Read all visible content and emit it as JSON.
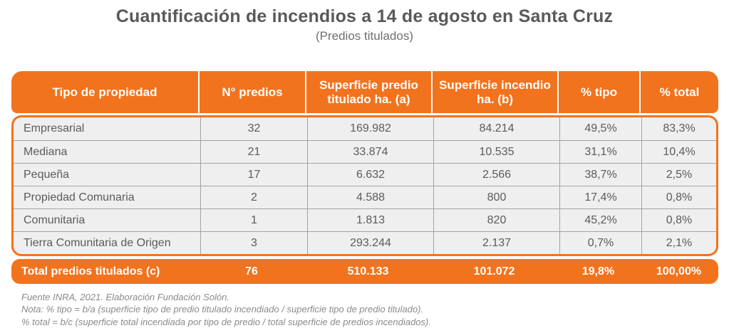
{
  "title": "Cuantificación de incendios a 14 de agosto en Santa Cruz",
  "subtitle": "(Predios titulados)",
  "colors": {
    "accent": "#F2731E",
    "row_bg": "#EFEFEF",
    "row_line": "#A3A3A3",
    "text_dark": "#58595B",
    "text_cell": "#5B5B5B",
    "text_note": "#8A8A8A"
  },
  "table": {
    "columns": [
      "Tipo de propiedad",
      "N° predios",
      "Superficie predio titulado ha. (a)",
      "Superficie incendio ha. (b)",
      "% tipo",
      "% total"
    ],
    "rows": [
      [
        "Empresarial",
        "32",
        "169.982",
        "84.214",
        "49,5%",
        "83,3%"
      ],
      [
        "Mediana",
        "21",
        "33.874",
        "10.535",
        "31,1%",
        "10,4%"
      ],
      [
        "Pequeña",
        "17",
        "6.632",
        "2.566",
        "38,7%",
        "2,5%"
      ],
      [
        "Propiedad Comunaria",
        "2",
        "4.588",
        "800",
        "17,4%",
        "0,8%"
      ],
      [
        "Comunitaria",
        "1",
        "1.813",
        "820",
        "45,2%",
        "0,8%"
      ],
      [
        "Tierra Comunitaria de Origen",
        "3",
        "293.244",
        "2.137",
        "0,7%",
        "2,1%"
      ]
    ],
    "total": [
      "Total predios titulados (c)",
      "76",
      "510.133",
      "101.072",
      "19,8%",
      "100,00%"
    ]
  },
  "notes": [
    "Fuente INRA, 2021. Elaboración Fundación Solón.",
    "Nota: % tipo = b/a (superficie tipo de predio titulado incendiado / superficie tipo de predio titulado).",
    "% total = b/c (superficie total incendiada por tipo de predio / total superficie de predios incendiados)."
  ],
  "chart_data": {
    "type": "table",
    "title": "Cuantificación de incendios a 14 de agosto en Santa Cruz",
    "subtitle": "(Predios titulados)",
    "columns": [
      "Tipo de propiedad",
      "N° predios",
      "Superficie predio titulado ha. (a)",
      "Superficie incendio ha. (b)",
      "% tipo",
      "% total"
    ],
    "rows": [
      {
        "tipo": "Empresarial",
        "n_predios": 32,
        "superficie_titulado_ha": 169982,
        "superficie_incendio_ha": 84214,
        "pct_tipo": 49.5,
        "pct_total": 83.3
      },
      {
        "tipo": "Mediana",
        "n_predios": 21,
        "superficie_titulado_ha": 33874,
        "superficie_incendio_ha": 10535,
        "pct_tipo": 31.1,
        "pct_total": 10.4
      },
      {
        "tipo": "Pequeña",
        "n_predios": 17,
        "superficie_titulado_ha": 6632,
        "superficie_incendio_ha": 2566,
        "pct_tipo": 38.7,
        "pct_total": 2.5
      },
      {
        "tipo": "Propiedad Comunaria",
        "n_predios": 2,
        "superficie_titulado_ha": 4588,
        "superficie_incendio_ha": 800,
        "pct_tipo": 17.4,
        "pct_total": 0.8
      },
      {
        "tipo": "Comunitaria",
        "n_predios": 1,
        "superficie_titulado_ha": 1813,
        "superficie_incendio_ha": 820,
        "pct_tipo": 45.2,
        "pct_total": 0.8
      },
      {
        "tipo": "Tierra Comunitaria de Origen",
        "n_predios": 3,
        "superficie_titulado_ha": 293244,
        "superficie_incendio_ha": 2137,
        "pct_tipo": 0.7,
        "pct_total": 2.1
      }
    ],
    "total_row": {
      "tipo": "Total predios titulados (c)",
      "n_predios": 76,
      "superficie_titulado_ha": 510133,
      "superficie_incendio_ha": 101072,
      "pct_tipo": 19.8,
      "pct_total": 100.0
    },
    "source_note": "Fuente INRA, 2021. Elaboración Fundación Solón."
  }
}
